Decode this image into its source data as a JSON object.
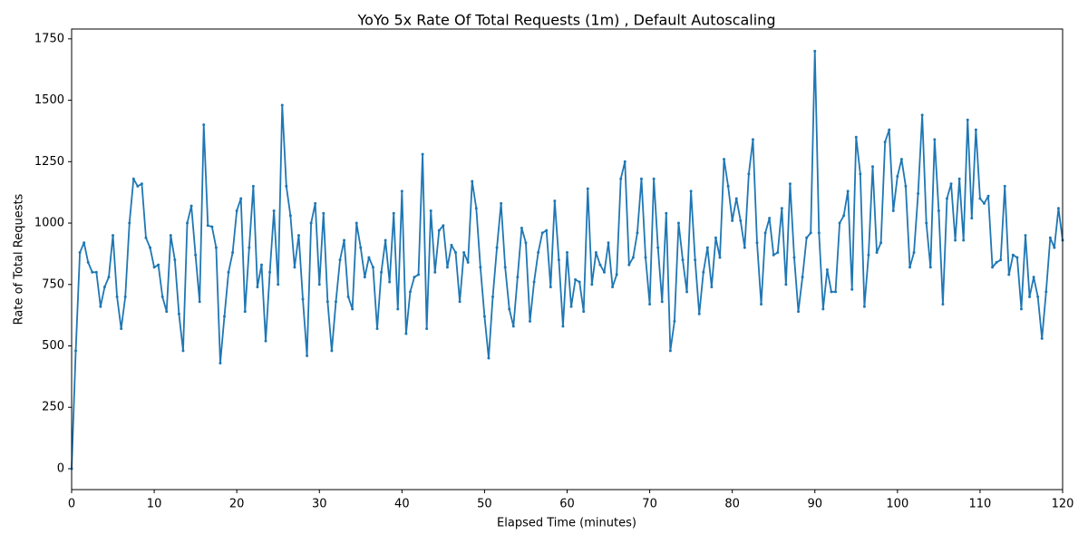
{
  "chart_data": {
    "type": "line",
    "title": "YoYo 5x Rate Of Total Requests (1m) , Default Autoscaling",
    "xlabel": "Elapsed Time (minutes)",
    "ylabel": "Rate of Total Requests",
    "x": [
      0,
      0.5,
      1,
      1.5,
      2,
      2.5,
      3,
      3.5,
      4,
      4.5,
      5,
      5.5,
      6,
      6.5,
      7,
      7.5,
      8,
      8.5,
      9,
      9.5,
      10,
      10.5,
      11,
      11.5,
      12,
      12.5,
      13,
      13.5,
      14,
      14.5,
      15,
      15.5,
      16,
      16.5,
      17,
      17.5,
      18,
      18.5,
      19,
      19.5,
      20,
      20.5,
      21,
      21.5,
      22,
      22.5,
      23,
      23.5,
      24,
      24.5,
      25,
      25.5,
      26,
      26.5,
      27,
      27.5,
      28,
      28.5,
      29,
      29.5,
      30,
      30.5,
      31,
      31.5,
      32,
      32.5,
      33,
      33.5,
      34,
      34.5,
      35,
      35.5,
      36,
      36.5,
      37,
      37.5,
      38,
      38.5,
      39,
      39.5,
      40,
      40.5,
      41,
      41.5,
      42,
      42.5,
      43,
      43.5,
      44,
      44.5,
      45,
      45.5,
      46,
      46.5,
      47,
      47.5,
      48,
      48.5,
      49,
      49.5,
      50,
      50.5,
      51,
      51.5,
      52,
      52.5,
      53,
      53.5,
      54,
      54.5,
      55,
      55.5,
      56,
      56.5,
      57,
      57.5,
      58,
      58.5,
      59,
      59.5,
      60,
      60.5,
      61,
      61.5,
      62,
      62.5,
      63,
      63.5,
      64,
      64.5,
      65,
      65.5,
      66,
      66.5,
      67,
      67.5,
      68,
      68.5,
      69,
      69.5,
      70,
      70.5,
      71,
      71.5,
      72,
      72.5,
      73,
      73.5,
      74,
      74.5,
      75,
      75.5,
      76,
      76.5,
      77,
      77.5,
      78,
      78.5,
      79,
      79.5,
      80,
      80.5,
      81,
      81.5,
      82,
      82.5,
      83,
      83.5,
      84,
      84.5,
      85,
      85.5,
      86,
      86.5,
      87,
      87.5,
      88,
      88.5,
      89,
      89.5,
      90,
      90.5,
      91,
      91.5,
      92,
      92.5,
      93,
      93.5,
      94,
      94.5,
      95,
      95.5,
      96,
      96.5,
      97,
      97.5,
      98,
      98.5,
      99,
      99.5,
      100,
      100.5,
      101,
      101.5,
      102,
      102.5,
      103,
      103.5,
      104,
      104.5,
      105,
      105.5,
      106,
      106.5,
      107,
      107.5,
      108,
      108.5,
      109,
      109.5,
      110,
      110.5,
      111,
      111.5,
      112,
      112.5,
      113,
      113.5,
      114,
      114.5,
      115,
      115.5,
      116,
      116.5,
      117,
      117.5,
      118,
      118.5,
      119,
      119.5,
      120
    ],
    "series": [
      {
        "color": "#1f77b4",
        "values": [
          0,
          480,
          880,
          920,
          840,
          800,
          800,
          660,
          740,
          780,
          950,
          700,
          570,
          700,
          1000,
          1180,
          1150,
          1160,
          940,
          900,
          820,
          830,
          700,
          640,
          950,
          850,
          630,
          480,
          1000,
          1070,
          870,
          680,
          1400,
          990,
          985,
          900,
          430,
          620,
          800,
          880,
          1050,
          1100,
          640,
          900,
          1150,
          740,
          830,
          520,
          800,
          1050,
          750,
          1480,
          1150,
          1030,
          820,
          950,
          690,
          460,
          1000,
          1080,
          750,
          1040,
          680,
          480,
          680,
          850,
          930,
          700,
          650,
          1000,
          900,
          780,
          860,
          820,
          570,
          800,
          930,
          760,
          1040,
          650,
          1130,
          550,
          720,
          780,
          790,
          1280,
          570,
          1050,
          800,
          970,
          990,
          820,
          910,
          880,
          680,
          880,
          840,
          1170,
          1060,
          820,
          620,
          450,
          700,
          900,
          1080,
          820,
          650,
          580,
          780,
          980,
          920,
          600,
          760,
          880,
          960,
          970,
          740,
          1090,
          850,
          580,
          880,
          660,
          770,
          760,
          640,
          1140,
          750,
          880,
          830,
          800,
          920,
          740,
          790,
          1180,
          1250,
          830,
          860,
          960,
          1180,
          860,
          670,
          1180,
          900,
          680,
          1040,
          480,
          600,
          1000,
          850,
          720,
          1130,
          850,
          630,
          800,
          900,
          740,
          940,
          860,
          1260,
          1150,
          1010,
          1100,
          1010,
          900,
          1200,
          1340,
          920,
          670,
          960,
          1020,
          870,
          880,
          1060,
          750,
          1160,
          860,
          640,
          780,
          940,
          960,
          1700,
          960,
          650,
          810,
          720,
          720,
          1000,
          1030,
          1130,
          730,
          1350,
          1200,
          660,
          870,
          1230,
          880,
          920,
          1330,
          1380,
          1050,
          1190,
          1260,
          1150,
          820,
          880,
          1120,
          1440,
          1000,
          820,
          1340,
          1050,
          670,
          1100,
          1160,
          930,
          1180,
          930,
          1420,
          1020,
          1380,
          1100,
          1080,
          1110,
          820,
          840,
          850,
          1150,
          790,
          870,
          860,
          650,
          950,
          700,
          780,
          700,
          530,
          720,
          940,
          900,
          1060,
          930
        ]
      }
    ],
    "xlim": [
      0,
      120
    ],
    "xticks": [
      0,
      10,
      20,
      30,
      40,
      50,
      60,
      70,
      80,
      90,
      100,
      110,
      120
    ],
    "ylim": [
      -85,
      1790
    ],
    "yticks": [
      0,
      250,
      500,
      750,
      1000,
      1250,
      1500,
      1750
    ],
    "grid": false
  }
}
